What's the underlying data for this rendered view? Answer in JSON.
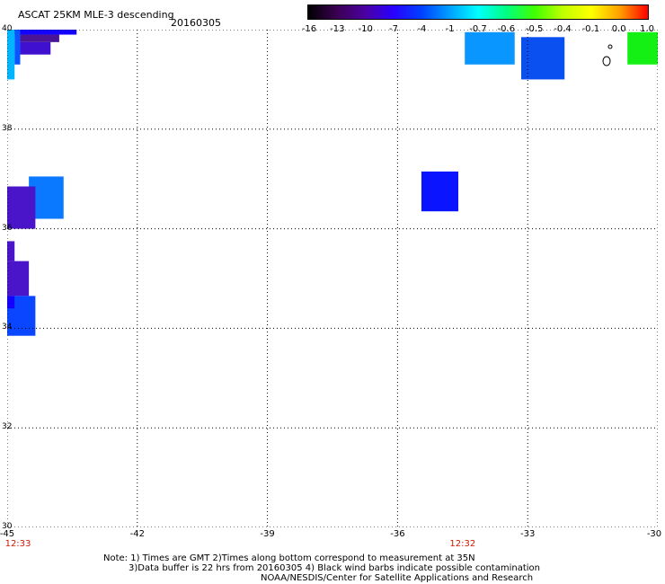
{
  "header": {
    "title": "ASCAT 25KM MLE-3 descending",
    "date": "20160305"
  },
  "colorbar": {
    "labels": [
      "-16",
      "-13",
      "-10",
      "-7",
      "-4",
      "-1",
      "-0.7",
      "-0.6",
      "-0.5",
      "-0.4",
      "-0.1",
      "0.0",
      "1.0"
    ],
    "colors": [
      "#000000",
      "#3a0050",
      "#4b00a0",
      "#2a00ff",
      "#0040ff",
      "#00a0ff",
      "#00ffff",
      "#00ff80",
      "#40ff00",
      "#c0ff00",
      "#ffff00",
      "#ffa000",
      "#ff0000"
    ]
  },
  "map": {
    "lon_range": [
      -45,
      -30
    ],
    "lat_range": [
      30,
      40
    ],
    "lon_ticks": [
      "-45",
      "-42",
      "-39",
      "-36",
      "-33",
      "-30"
    ],
    "lat_ticks": [
      "40",
      "38",
      "36",
      "34",
      "32",
      "30"
    ],
    "times": [
      {
        "label": "12:33",
        "lon": -45
      },
      {
        "label": "12:32",
        "lon": -34.5
      }
    ],
    "cells": [
      {
        "lon0": -44.83,
        "lon1": -43.4,
        "lat0": 39.9,
        "lat1": 40.0,
        "color": "#1400ff"
      },
      {
        "lon0": -44.7,
        "lon1": -43.8,
        "lat0": 39.75,
        "lat1": 39.9,
        "color": "#4a1496"
      },
      {
        "lon0": -44.7,
        "lon1": -44.0,
        "lat0": 39.5,
        "lat1": 39.75,
        "color": "#4010d0"
      },
      {
        "lon0": -44.83,
        "lon1": -44.7,
        "lat0": 39.3,
        "lat1": 40.0,
        "color": "#0a55ff"
      },
      {
        "lon0": -45.0,
        "lon1": -44.83,
        "lat0": 39.0,
        "lat1": 40.0,
        "color": "#00b4ff"
      },
      {
        "lon0": -44.5,
        "lon1": -43.7,
        "lat0": 36.2,
        "lat1": 37.05,
        "color": "#0a78ff"
      },
      {
        "lon0": -45.0,
        "lon1": -44.35,
        "lat0": 36.0,
        "lat1": 36.85,
        "color": "#4a14c8"
      },
      {
        "lon0": -45.0,
        "lon1": -44.83,
        "lat0": 35.35,
        "lat1": 35.75,
        "color": "#4a14c8"
      },
      {
        "lon0": -45.0,
        "lon1": -44.5,
        "lat0": 34.65,
        "lat1": 35.35,
        "color": "#4a14c8"
      },
      {
        "lon0": -45.0,
        "lon1": -44.35,
        "lat0": 33.85,
        "lat1": 34.65,
        "color": "#0a46ff"
      },
      {
        "lon0": -45.0,
        "lon1": -44.83,
        "lat0": 34.4,
        "lat1": 34.65,
        "color": "#1400ff"
      },
      {
        "lon0": -35.45,
        "lon1": -34.6,
        "lat0": 36.35,
        "lat1": 37.15,
        "color": "#0a14ff"
      },
      {
        "lon0": -34.45,
        "lon1": -33.3,
        "lat0": 39.3,
        "lat1": 39.95,
        "color": "#0a96ff"
      },
      {
        "lon0": -33.15,
        "lon1": -32.15,
        "lat0": 39.0,
        "lat1": 39.85,
        "color": "#0a50f0"
      },
      {
        "lon0": -30.7,
        "lon1": -30.0,
        "lat0": 39.3,
        "lat1": 39.95,
        "color": "#14f014"
      }
    ]
  },
  "notes": {
    "line1": "Note: 1) Times are GMT 2)Times along bottom correspond to measurement at 35N",
    "line2": "3)Data buffer is 22 hrs from 20160305 4) Black wind barbs indicate possible contamination",
    "line3": "NOAA/NESDIS/Center for Satellite Applications and Research"
  }
}
